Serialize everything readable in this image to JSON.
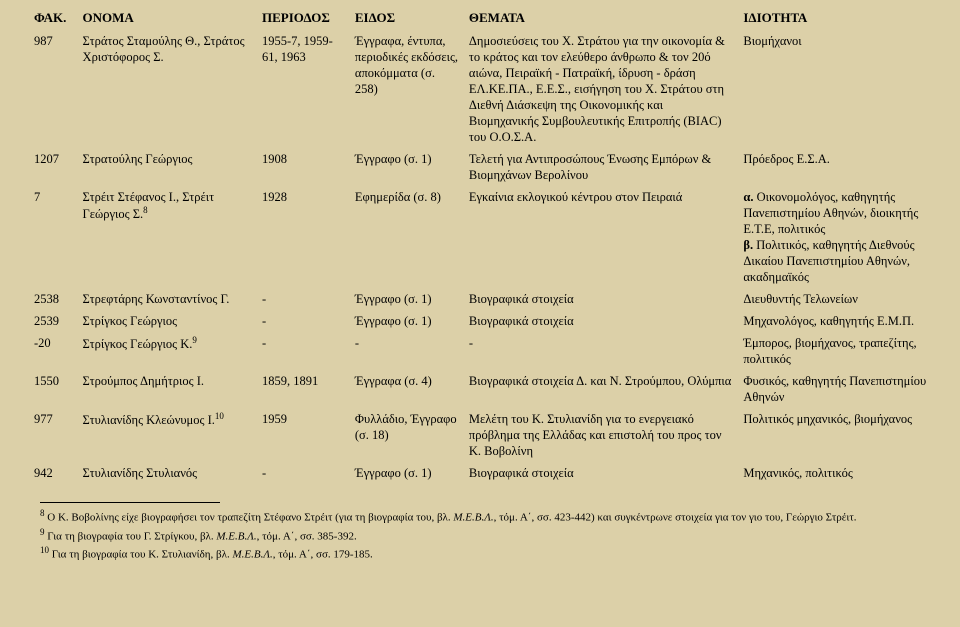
{
  "headers": {
    "c1": "ΦΑΚ.",
    "c2": "ΟΝΟΜΑ",
    "c3": "ΠΕΡΙΟΔΟΣ",
    "c4": "ΕΙΔΟΣ",
    "c5": "ΘΕΜΑΤΑ",
    "c6": "ΙΔΙΟΤΗΤΑ"
  },
  "rows": [
    {
      "c1": "987",
      "c2": "Στράτος Σταμούλης Θ., Στράτος Χριστόφορος Σ.",
      "c3": "1955-7, 1959-61, 1963",
      "c4": "Έγγραφα, έντυπα, περιοδικές εκδόσεις, αποκόμματα (σ. 258)",
      "c5": "Δημοσιεύσεις του Χ. Στράτου για την οικονομία & το κράτος και τον ελεύθερο άνθρωπο & τον 20ό αιώνα, Πειραϊκή - Πατραϊκή, ίδρυση - δράση ΕΛ.ΚΕ.ΠΑ., Ε.Ε.Σ., εισήγηση του Χ. Στράτου στη Διεθνή Διάσκεψη της Οικονομικής και Βιομηχανικής Συμβουλευτικής Επιτροπής (BIAC) του Ο.Ο.Σ.Α.",
      "c6": "Βιομήχανοι"
    },
    {
      "c1": "1207",
      "c2": "Στρατούλης Γεώργιος",
      "c3": "1908",
      "c4": "Έγγραφο (σ. 1)",
      "c5": "Τελετή για Αντιπροσώπους Ένωσης Εμπόρων & Βιομηχάνων Βερολίνου",
      "c6": "Πρόεδρος Ε.Σ.Α."
    },
    {
      "c1": "7",
      "c2_html": "Στρέιτ Στέφανος Ι., Στρέιτ Γεώργιος Σ.<sup>8</sup>",
      "c3": "1928",
      "c4": "Εφημερίδα (σ. 8)",
      "c5": "Εγκαίνια εκλογικού κέντρου στον Πειραιά",
      "c6_html": "<b>α.</b> Οικονομολόγος, καθηγητής Πανεπιστημίου Αθηνών, διοικητής Ε.Τ.Ε, πολιτικός<br><b>β.</b> Πολιτικός, καθηγητής Διεθνούς Δικαίου Πανεπιστημίου Αθηνών, ακαδημαϊκός"
    },
    {
      "c1": "2538",
      "c2": "Στρεφτάρης Κωνσταντίνος Γ.",
      "c3": "-",
      "c4": "Έγγραφο (σ. 1)",
      "c5": "Βιογραφικά στοιχεία",
      "c6": "Διευθυντής Τελωνείων"
    },
    {
      "c1": "2539",
      "c2": "Στρίγκος Γεώργιος",
      "c3": "-",
      "c4": "Έγγραφο (σ. 1)",
      "c5": "Βιογραφικά στοιχεία",
      "c6": "Μηχανολόγος, καθηγητής Ε.Μ.Π."
    },
    {
      "c1": "-20",
      "c2_html": "Στρίγκος Γεώργιος Κ.<sup>9</sup>",
      "c3": "-",
      "c4": "-",
      "c5": "-",
      "c6": "Έμπορος, βιομήχανος, τραπεζίτης, πολιτικός"
    },
    {
      "c1": "1550",
      "c2": "Στρούμπος Δημήτριος Ι.",
      "c3": "1859, 1891",
      "c4": "Έγγραφα (σ. 4)",
      "c5": "Βιογραφικά στοιχεία Δ. και Ν. Στρούμπου, Ολύμπια",
      "c6": "Φυσικός, καθηγητής Πανεπιστημίου Αθηνών"
    },
    {
      "c1": "977",
      "c2_html": "Στυλιανίδης Κλεώνυμος Ι.<sup>10</sup>",
      "c3": "1959",
      "c4": "Φυλλάδιο, Έγγραφο (σ. 18)",
      "c5": "Μελέτη του Κ. Στυλιανίδη για το ενεργειακό πρόβλημα της Ελλάδας και επιστολή του προς τον Κ. Βοβολίνη",
      "c6": "Πολιτικός μηχανικός, βιομήχανος"
    },
    {
      "c1": "942",
      "c2": "Στυλιανίδης Στυλιανός",
      "c3": "-",
      "c4": "Έγγραφο (σ. 1)",
      "c5": "Βιογραφικά στοιχεία",
      "c6": "Μηχανικός, πολιτικός"
    }
  ],
  "footnotes": {
    "f8_html": "<sup>8</sup> Ο Κ. Βοβολίνης είχε βιογραφήσει τον τραπεζίτη Στέφανο Στρέιτ (για τη βιογραφία του, βλ. <i>Μ.Ε.Β.Λ.</i>, τόμ. Α΄, σσ. 423-442) και συγκέντρωνε στοιχεία για τον γιο του, Γεώργιο Στρέιτ.",
    "f9_html": "<sup>9</sup> Για τη βιογραφία του Γ. Στρίγκου, βλ. <i>Μ.Ε.Β.Λ.</i>, τόμ. Α΄, σσ. 385-392.",
    "f10_html": "<sup>10</sup> Για τη βιογραφία του Κ. Στυλιανίδη, βλ. <i>Μ.Ε.Β.Λ.</i>, τόμ. Α΄, σσ. 179-185."
  }
}
